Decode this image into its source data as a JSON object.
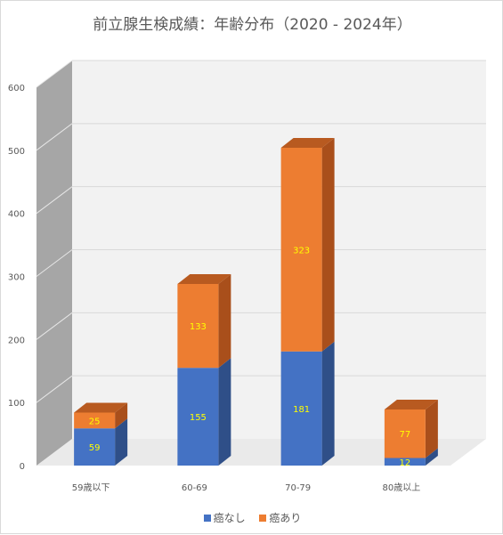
{
  "colors": {
    "no_cancer": "#4472c4",
    "no_cancer_side": "#2f4f88",
    "cancer": "#ed7d31",
    "cancer_top": "#b85a20",
    "cancer_side": "#a94f1b",
    "wall": "#f2f2f2",
    "side_wall": "#a6a6a6",
    "floor": "#d9d9d9",
    "grid": "#d9d9d9",
    "label_yellow": "#ffff00",
    "text": "#595959"
  },
  "chart_data": {
    "type": "bar",
    "stacked": true,
    "three_d": true,
    "title": "前立腺生検成績：年齢分布（2020 - 2024年）",
    "xlabel": "",
    "ylabel": "",
    "categories": [
      "59歳以下",
      "60-69",
      "70-79",
      "80歳以上"
    ],
    "series": [
      {
        "name": "癌なし",
        "values": [
          59,
          155,
          181,
          12
        ]
      },
      {
        "name": "癌あり",
        "values": [
          25,
          133,
          323,
          77
        ]
      }
    ],
    "ylim": [
      0,
      600
    ],
    "yticks": [
      "0",
      "100",
      "200",
      "300",
      "400",
      "500",
      "600"
    ],
    "grid": true,
    "legend": "bottom"
  }
}
